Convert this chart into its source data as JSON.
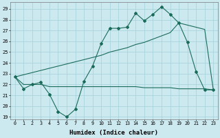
{
  "xlabel": "Humidex (Indice chaleur)",
  "background_color": "#cce9f0",
  "grid_color": "#aad4dc",
  "line_color": "#1a6b5a",
  "x_values": [
    0,
    1,
    2,
    3,
    4,
    5,
    6,
    7,
    8,
    9,
    10,
    11,
    12,
    13,
    14,
    15,
    16,
    17,
    18,
    19,
    20,
    21,
    22,
    23
  ],
  "line1_y": [
    22.7,
    21.6,
    22.0,
    22.2,
    21.1,
    19.5,
    19.0,
    19.7,
    22.3,
    23.7,
    25.8,
    27.2,
    27.2,
    27.3,
    28.6,
    27.9,
    28.5,
    29.2,
    28.5,
    27.7,
    25.9,
    23.2,
    21.5,
    21.5
  ],
  "line2_y": [
    22.7,
    22.0,
    22.0,
    22.0,
    21.8,
    21.8,
    21.8,
    21.8,
    21.8,
    21.8,
    21.8,
    21.8,
    21.8,
    21.8,
    21.8,
    21.7,
    21.7,
    21.7,
    21.7,
    21.6,
    21.6,
    21.6,
    21.6,
    21.5
  ],
  "line3_y": [
    22.7,
    22.9,
    23.1,
    23.3,
    23.5,
    23.7,
    23.9,
    24.1,
    24.3,
    24.5,
    24.7,
    25.0,
    25.2,
    25.4,
    25.7,
    25.9,
    26.2,
    26.5,
    26.8,
    27.7,
    27.5,
    27.3,
    27.1,
    21.5
  ],
  "ylim": [
    18.8,
    29.6
  ],
  "yticks": [
    19,
    20,
    21,
    22,
    23,
    24,
    25,
    26,
    27,
    28,
    29
  ],
  "xlim": [
    -0.5,
    23.5
  ],
  "xticks": [
    0,
    1,
    2,
    3,
    4,
    5,
    6,
    7,
    8,
    9,
    10,
    11,
    12,
    13,
    14,
    15,
    16,
    17,
    18,
    19,
    20,
    21,
    22,
    23
  ]
}
